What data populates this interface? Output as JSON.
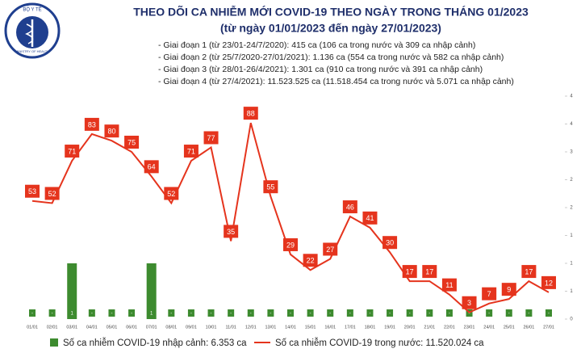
{
  "chart_data": {
    "type": "bar_line",
    "logo_top": "BỘ Y TẾ",
    "logo_bottom": "MINISTRY OF HEALTH",
    "title": "THEO DÕI CA NHIỄM MỚI COVID-19 THEO NGÀY TRONG THÁNG 01/2023",
    "subtitle": "(từ ngày 01/01/2023 đến ngày 27/01/2023)",
    "annotations": [
      "- Giai đoạn 1 (từ 23/01-24/7/2020): 415 ca (106 ca trong nước và 309 ca nhập cảnh)",
      "- Giai đoạn 2 (từ 25/7/2020-27/01/2021): 1.136 ca (554 ca trong nước và 582 ca nhập cảnh)",
      "- Giai đoạn 3 (từ 28/01-26/4/2021): 1.301 ca (910 ca trong nước và 391 ca nhập cảnh)",
      "- Giai đoạn 4 (từ 27/4/2021): 11.523.525 ca (11.518.454 ca trong nước và 5.071 ca nhập cảnh)"
    ],
    "categories": [
      "01/01",
      "02/01",
      "03/01",
      "04/01",
      "05/01",
      "06/01",
      "07/01",
      "08/01",
      "09/01",
      "10/01",
      "11/01",
      "12/01",
      "13/01",
      "14/01",
      "15/01",
      "16/01",
      "17/01",
      "18/01",
      "19/01",
      "20/01",
      "21/01",
      "22/01",
      "23/01",
      "24/01",
      "25/01",
      "26/01",
      "27/01"
    ],
    "series": [
      {
        "name": "Số ca nhiễm COVID-19 nhập cảnh: 6.353 ca",
        "type": "bar",
        "axis": "y2",
        "color": "#3d8b2f",
        "values": [
          0,
          0,
          1,
          0,
          0,
          0,
          1,
          0,
          0,
          0,
          0,
          0,
          0,
          0,
          0,
          0,
          0,
          0,
          0,
          0,
          0,
          0,
          0,
          0,
          0,
          0,
          0
        ],
        "value_labels": [
          "-",
          "-",
          "1",
          "-",
          "-",
          "-",
          "1",
          "-",
          "-",
          "-",
          "-",
          "-",
          "-",
          "-",
          "-",
          "-",
          "-",
          "-",
          "-",
          "-",
          "-",
          "-",
          "-",
          "-",
          "-",
          "-",
          "-"
        ]
      },
      {
        "name": "Số ca nhiễm COVID-19 trong nước: 11.520.024 ca",
        "type": "line",
        "color": "#e5341d",
        "values": [
          53,
          52,
          71,
          83,
          80,
          75,
          64,
          52,
          71,
          77,
          35,
          88,
          55,
          29,
          22,
          27,
          46,
          41,
          30,
          17,
          17,
          11,
          3,
          7,
          9,
          17,
          12
        ]
      }
    ],
    "ylim": [
      0,
      100
    ],
    "y2lim": [
      0,
      4
    ],
    "y2ticks": [
      0,
      {
        "value": 0.5,
        "label": "1"
      },
      1,
      {
        "value": 1.5,
        "label": "1"
      },
      2,
      {
        "value": 2.5,
        "label": "2"
      },
      3,
      {
        "value": 3.5,
        "label": "4"
      },
      4
    ]
  }
}
